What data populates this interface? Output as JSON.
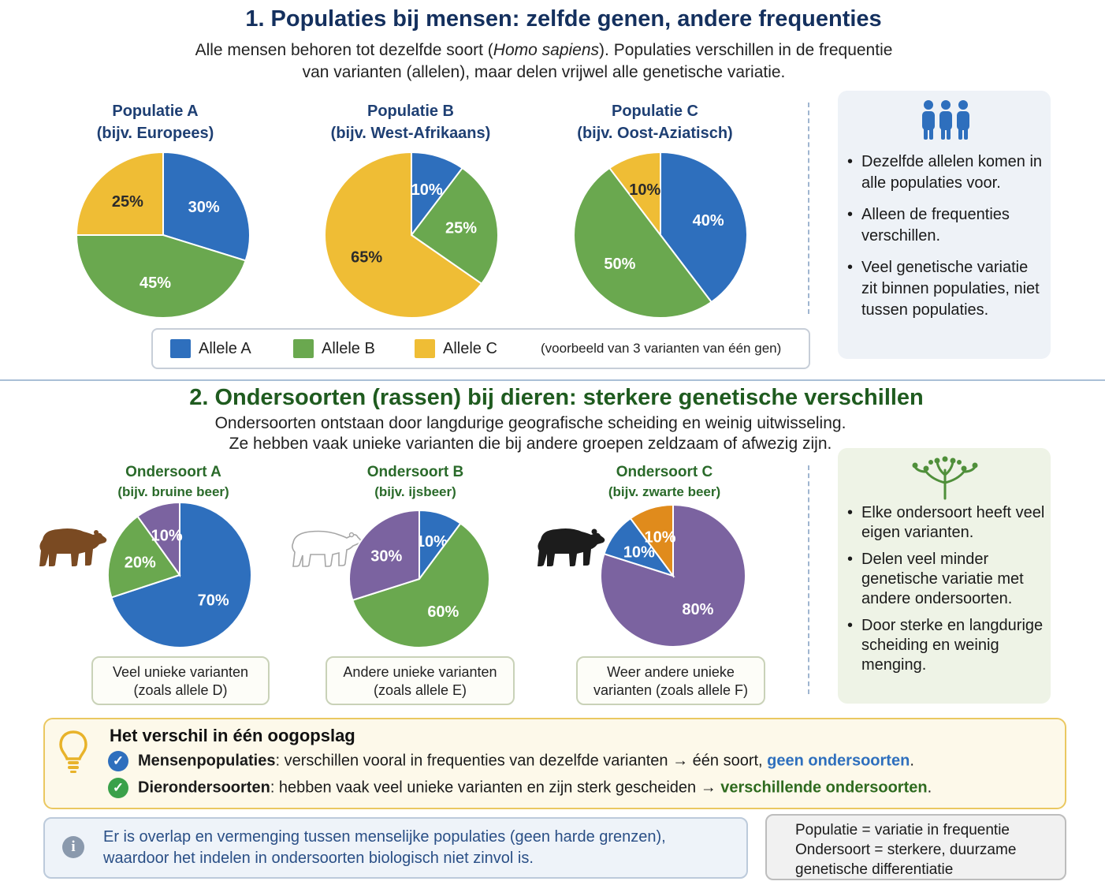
{
  "section1": {
    "title": "1. Populaties bij mensen: zelfde genen, andere frequenties",
    "intro_line1_before": "Alle mensen behoren tot dezelfde soort (",
    "intro_line1_italic": "Homo sapiens",
    "intro_line1_after": "). Populaties verschillen in de frequentie",
    "intro_line2": "van varianten (allelen), maar delen vrijwel alle genetische variatie.",
    "populations": [
      {
        "name": "Populatie A",
        "example": "(bijv. Europees)",
        "slices": [
          {
            "allele": "Allele A",
            "value": 30,
            "label": "30%"
          },
          {
            "allele": "Allele B",
            "value": 45,
            "label": "45%"
          },
          {
            "allele": "Allele C",
            "value": 25,
            "label": "25%"
          }
        ]
      },
      {
        "name": "Populatie B",
        "example": "(bijv. West-Afrikaans)",
        "slices": [
          {
            "allele": "Allele A",
            "value": 10,
            "label": "10%"
          },
          {
            "allele": "Allele B",
            "value": 25,
            "label": "25%"
          },
          {
            "allele": "Allele C",
            "value": 65,
            "label": "65%"
          }
        ]
      },
      {
        "name": "Populatie C",
        "example": "(bijv. Oost-Aziatisch)",
        "slices": [
          {
            "allele": "Allele A",
            "value": 40,
            "label": "40%"
          },
          {
            "allele": "Allele B",
            "value": 50,
            "label": "50%"
          },
          {
            "allele": "Allele C",
            "value": 10,
            "label": "10%"
          }
        ]
      }
    ],
    "legend": {
      "items": [
        {
          "label": "Allele A",
          "color": "#2e6fbd"
        },
        {
          "label": "Allele B",
          "color": "#6aa84f"
        },
        {
          "label": "Allele C",
          "color": "#efbd35"
        }
      ],
      "note": "(voorbeeld van 3 varianten van één gen)"
    },
    "side_icon": "people-group-icon",
    "side_bullets": [
      "Dezelfde allelen komen in alle populaties voor.",
      "Alleen de frequenties verschillen.",
      "Veel genetische variatie zit binnen populaties, niet tussen populaties."
    ]
  },
  "section2": {
    "title": "2. Ondersoorten (rassen) bij dieren: sterkere genetische verschillen",
    "intro_line1": "Ondersoorten ontstaan door langdurige geografische scheiding en weinig uitwisseling.",
    "intro_line2": "Ze hebben vaak unieke varianten die bij andere groepen zeldzaam of afwezig zijn.",
    "subspecies": [
      {
        "name": "Ondersoort A",
        "example": "(bijv. bruine beer)",
        "icon": "brown-bear-icon",
        "slices": [
          {
            "value": 70,
            "label": "70%",
            "color": "#2e6fbd"
          },
          {
            "value": 20,
            "label": "20%",
            "color": "#6aa84f"
          },
          {
            "value": 10,
            "label": "10%",
            "color": "#7b63a0"
          }
        ],
        "note": "Veel unieke varianten (zoals allele D)"
      },
      {
        "name": "Ondersoort B",
        "example": "(bijv. ijsbeer)",
        "icon": "polar-bear-icon",
        "slices": [
          {
            "value": 10,
            "label": "10%",
            "color": "#2e6fbd"
          },
          {
            "value": 60,
            "label": "60%",
            "color": "#6aa84f"
          },
          {
            "value": 30,
            "label": "30%",
            "color": "#7b63a0"
          }
        ],
        "note": "Andere unieke varianten (zoals allele E)"
      },
      {
        "name": "Ondersoort C",
        "example": "(bijv. zwarte beer)",
        "icon": "black-bear-icon",
        "slices": [
          {
            "value": 80,
            "label": "80%",
            "color": "#7b63a0"
          },
          {
            "value": 10,
            "label": "10%",
            "color": "#2e6fbd"
          },
          {
            "value": 10,
            "label": "10%",
            "color": "#e08b1c"
          }
        ],
        "note": "Weer andere unieke varianten (zoals allele F)"
      }
    ],
    "side_icon": "tree-icon",
    "side_bullets": [
      "Elke ondersoort heeft veel eigen varianten.",
      "Delen veel minder genetische variatie met andere ondersoorten.",
      "Door sterke en langdurige scheiding en weinig menging."
    ]
  },
  "summary": {
    "title": "Het verschil in één oogopslag",
    "row1": {
      "bold": "Mensenpopulaties",
      "text": ": verschillen vooral in frequenties van dezelfde varianten → één soort, ",
      "highlight": "geen ondersoorten",
      "end": "."
    },
    "row2": {
      "bold": "Dierondersoorten",
      "text": ": hebben vaak veel unieke varianten en zijn sterk gescheiden → ",
      "highlight": "verschillende ondersoorten",
      "end": "."
    }
  },
  "info": {
    "line1": "Er is overlap en vermenging tussen menselijke populaties (geen harde grenzen),",
    "line2": "waardoor het indelen in ondersoorten biologisch niet zinvol is."
  },
  "definitions": {
    "line1": "Populatie = variatie in frequentie",
    "line2": "Ondersoort = sterkere, duurzame",
    "line3": "genetische differentiatie"
  },
  "colors": {
    "blue": "#2e6fbd",
    "green": "#6aa84f",
    "yellow": "#efbd35",
    "purple": "#7b63a0",
    "orange": "#e08b1c"
  }
}
